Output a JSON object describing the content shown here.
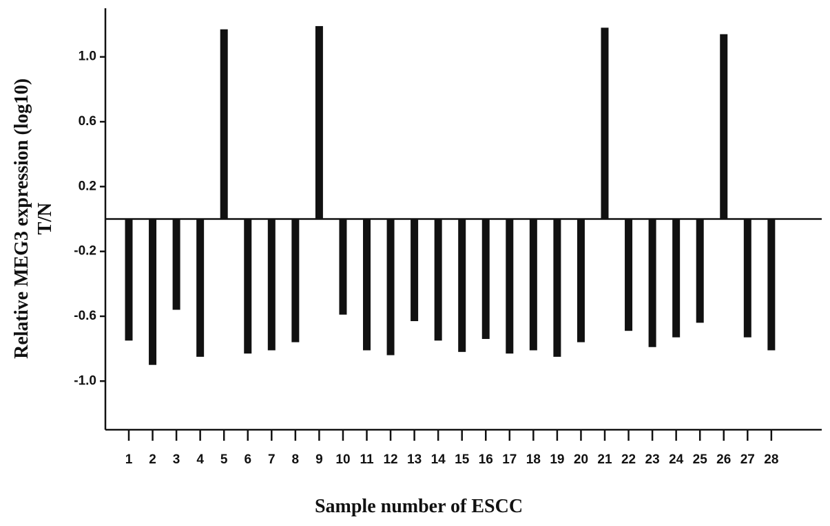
{
  "chart_data": {
    "type": "bar",
    "x_label": "Sample number of ESCC",
    "y_label": [
      "Relative MEG3 expression (log10)",
      "T/N"
    ],
    "categories": [
      "1",
      "2",
      "3",
      "4",
      "5",
      "6",
      "7",
      "8",
      "9",
      "10",
      "11",
      "12",
      "13",
      "14",
      "15",
      "16",
      "17",
      "18",
      "19",
      "20",
      "21",
      "22",
      "23",
      "24",
      "25",
      "26",
      "27",
      "28"
    ],
    "values": [
      -0.75,
      -0.9,
      -0.56,
      -0.85,
      1.17,
      -0.83,
      -0.81,
      -0.76,
      1.19,
      -0.59,
      -0.81,
      -0.84,
      -0.63,
      -0.75,
      -0.82,
      -0.74,
      -0.83,
      -0.81,
      -0.85,
      -0.76,
      1.18,
      -0.69,
      -0.79,
      -0.73,
      -0.64,
      1.14,
      -0.73,
      -0.81
    ],
    "color": "#111111",
    "ylim": [
      -1.3,
      1.3
    ],
    "yticks": [
      {
        "value": -1.0,
        "label": "-1.0"
      },
      -0.6,
      -0.2,
      0.2,
      0.6,
      {
        "value": 1.0,
        "label": "1.0"
      }
    ],
    "grid": false
  }
}
